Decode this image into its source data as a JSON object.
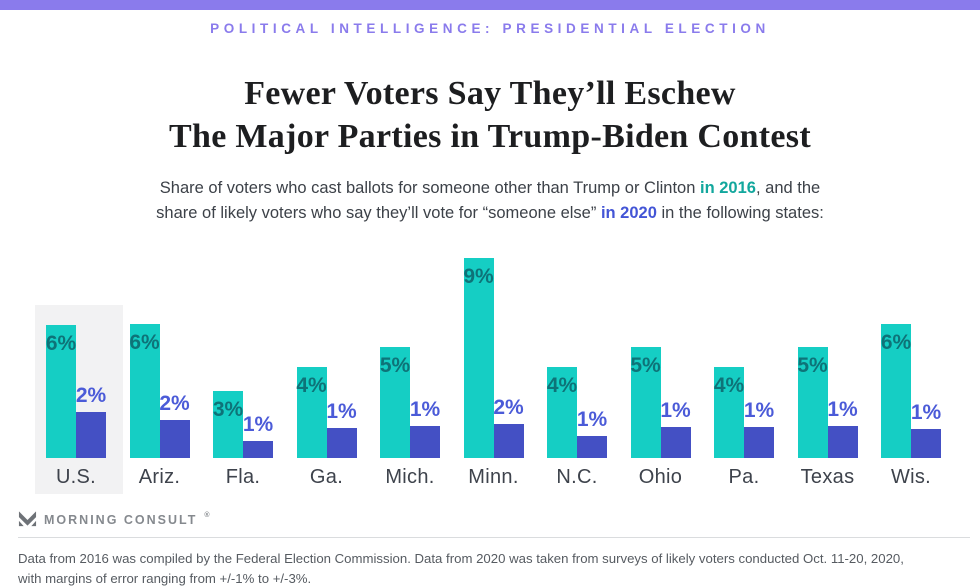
{
  "page": {
    "background": "#FFFFFF",
    "accent_bar_color": "#8A7BEC"
  },
  "header": {
    "kicker": "POLITICAL INTELLIGENCE: PRESIDENTIAL ELECTION",
    "kicker_color": "#8A7BEC",
    "title_lines": [
      "Fewer Voters Say They’ll Eschew",
      "The Major Parties in Trump-Biden Contest"
    ]
  },
  "subtitle": {
    "accent_colors": {
      "teal": "#12A79D",
      "blue": "#4355D6"
    },
    "lines": [
      [
        {
          "text": "Share of voters who cast ballots for someone other than Trump or Clinton "
        },
        {
          "text": "in 2016",
          "accent": "teal"
        },
        {
          "text": ", and the"
        }
      ],
      [
        {
          "text": "share of likely voters who say they’ll vote for “someone else” "
        },
        {
          "text": "in 2020",
          "accent": "blue"
        },
        {
          "text": " in the following states:"
        }
      ]
    ]
  },
  "chart_data": {
    "type": "bar",
    "unit": "%",
    "categories": [
      "U.S.",
      "Ariz.",
      "Fla.",
      "Ga.",
      "Mich.",
      "Minn.",
      "N.C.",
      "Ohio",
      "Pa.",
      "Texas",
      "Wis."
    ],
    "series": [
      {
        "name": "2016",
        "color": "#15CEC4",
        "label_color": "#0E7378",
        "values": [
          6,
          6,
          3,
          4,
          5,
          9,
          4,
          5,
          4,
          5,
          6
        ],
        "bar_heights_pct": [
          6.0,
          6.05,
          3.0,
          4.1,
          5.0,
          9.0,
          4.1,
          5.0,
          4.1,
          5.0,
          6.05
        ]
      },
      {
        "name": "2020",
        "color": "#4450C4",
        "label_color": "#4B5BD8",
        "values": [
          2,
          2,
          1,
          1,
          1,
          2,
          1,
          1,
          1,
          1,
          1
        ],
        "bar_heights_pct": [
          2.05,
          1.7,
          0.75,
          1.35,
          1.45,
          1.55,
          1.0,
          1.4,
          1.4,
          1.45,
          1.3
        ]
      }
    ],
    "highlighted_category": "U.S.",
    "highlight_color": "#F2F2F3",
    "value_labels_shown": true,
    "axes": "none",
    "grid": false,
    "legend": "inline-in-subtitle",
    "ylim": [
      0,
      9
    ]
  },
  "footer": {
    "brand": "MORNING CONSULT",
    "brand_mark": "®",
    "note_lines": [
      "Data from 2016 was compiled by the Federal Election Commission. Data from 2020 was taken from surveys of likely voters conducted Oct. 11-20, 2020,",
      "with margins of error ranging from +/-1% to +/-3%."
    ]
  }
}
